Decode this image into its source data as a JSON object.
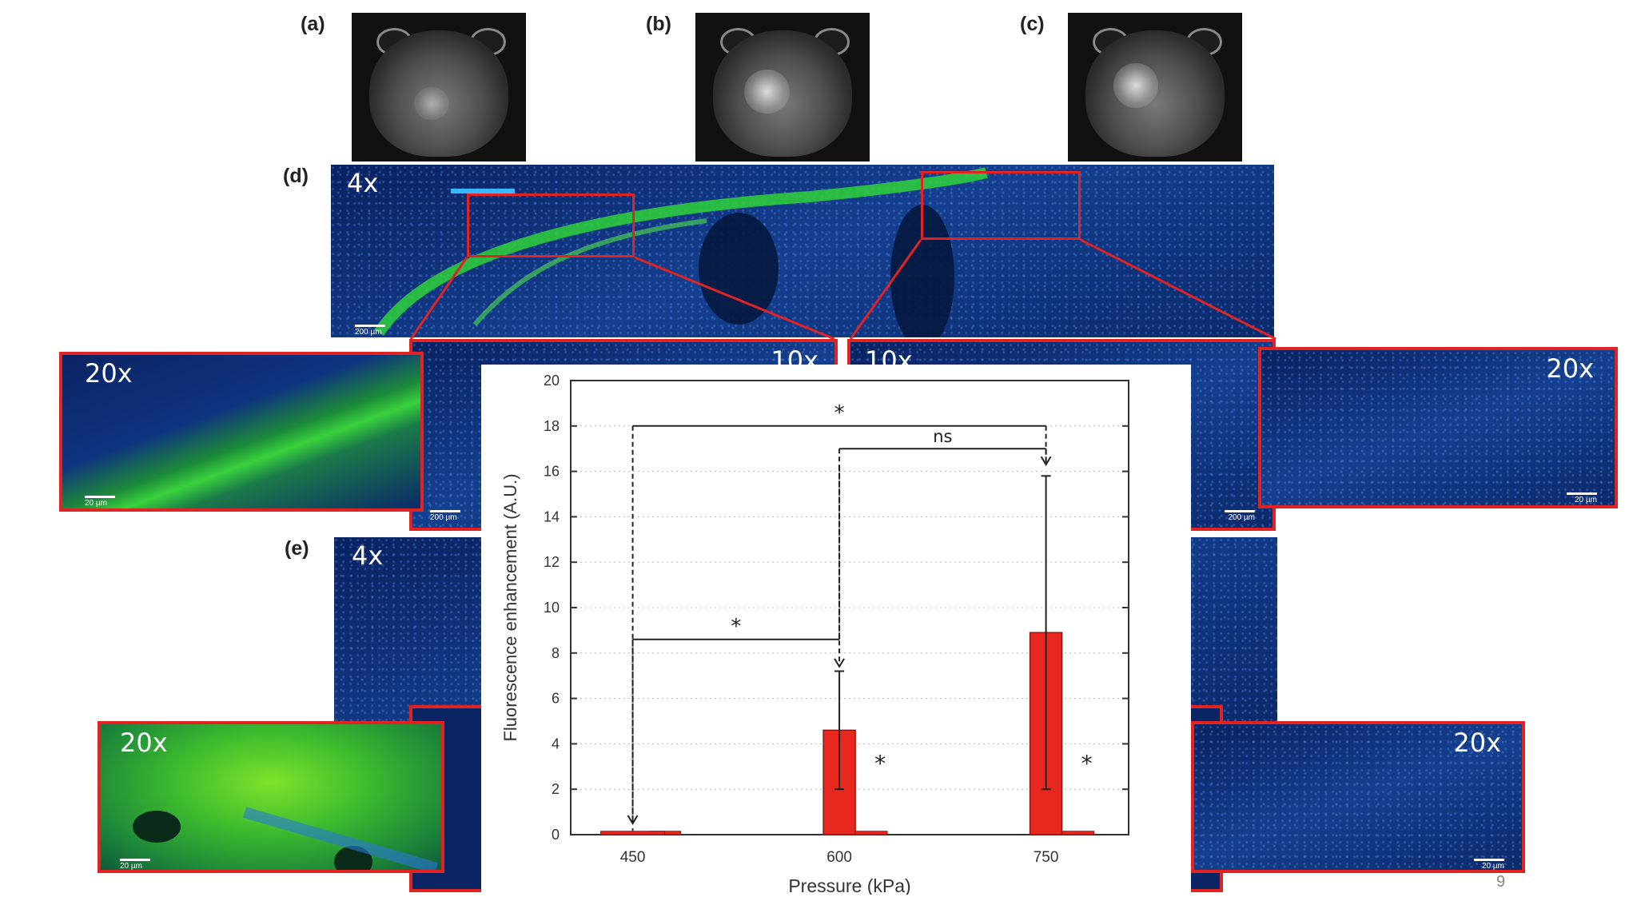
{
  "panels": {
    "a": "(a)",
    "b": "(b)",
    "c": "(c)",
    "d": "(d)",
    "e": "(e)"
  },
  "magnifications": {
    "d_overview": "4x",
    "d_left_10x": "10x",
    "d_right_10x": "10x",
    "d_left_20x": "20x",
    "d_right_20x": "20x",
    "e_overview": "4x",
    "e_left_20x": "20x",
    "e_right_20x": "20x"
  },
  "scale_bars": {
    "overview": "200 µm",
    "mid": "200 µm",
    "high": "20 µm"
  },
  "page_number": "9",
  "chart_data": {
    "type": "bar",
    "categories": [
      "450",
      "600",
      "750"
    ],
    "x_tick_values": [
      450,
      600,
      750
    ],
    "series": [
      {
        "values": [
          0,
          4.6,
          8.9
        ],
        "error": [
          0,
          2.6,
          6.9
        ],
        "color": "#e8281e"
      }
    ],
    "secondary_bars": [
      0,
      0,
      0
    ],
    "xlabel": "Pressure (kPa)",
    "ylabel": "Fluorescence enhancement (A.U.)",
    "ylim": [
      0,
      20
    ],
    "yticks": [
      0,
      2,
      4,
      6,
      8,
      10,
      12,
      14,
      16,
      18,
      20
    ],
    "grid": "dotted",
    "significance": [
      {
        "from": 450,
        "to": 750,
        "y": 18,
        "label": "*"
      },
      {
        "from": 600,
        "to": 750,
        "y": 17,
        "label": "ns"
      },
      {
        "from": 450,
        "to": 600,
        "y": 8.6,
        "label": "*"
      }
    ],
    "bar_marks": [
      {
        "at": 600,
        "label": "*"
      },
      {
        "at": 750,
        "label": "*"
      }
    ]
  }
}
